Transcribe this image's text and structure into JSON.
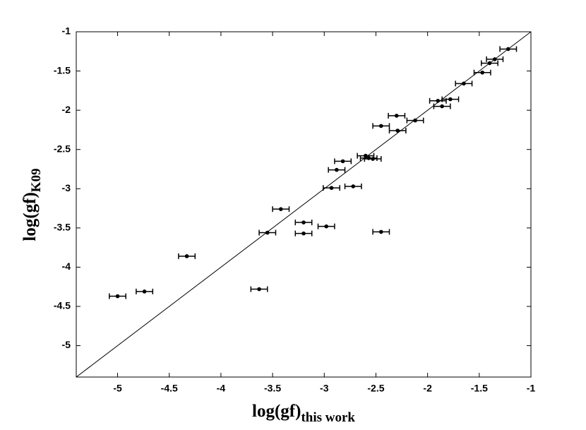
{
  "chart_data": {
    "type": "scatter",
    "x_label": "log(gf)",
    "x_label_subscript": "this work",
    "y_label": "log(gf)",
    "y_label_subscript": "K09",
    "x": [
      -5.0,
      -4.74,
      -4.33,
      -3.63,
      -3.55,
      -3.42,
      -3.2,
      -3.2,
      -2.98,
      -2.93,
      -2.88,
      -2.82,
      -2.72,
      -2.45,
      -2.6,
      -2.57,
      -2.53,
      -2.45,
      -2.3,
      -2.29,
      -2.12,
      -1.9,
      -1.86,
      -1.78,
      -1.65,
      -1.47,
      -1.4,
      -1.35,
      -1.22
    ],
    "values": [
      -4.37,
      -4.31,
      -3.86,
      -4.28,
      -3.56,
      -3.26,
      -3.43,
      -3.57,
      -3.48,
      -2.99,
      -2.76,
      -2.65,
      -2.97,
      -3.55,
      -2.58,
      -2.61,
      -2.62,
      -2.2,
      -2.07,
      -2.26,
      -2.13,
      -1.88,
      -1.95,
      -1.86,
      -1.66,
      -1.52,
      -1.4,
      -1.35,
      -1.22
    ],
    "xerr": [
      0.08,
      0.08,
      0.08,
      0.08,
      0.08,
      0.08,
      0.08,
      0.08,
      0.08,
      0.08,
      0.08,
      0.08,
      0.08,
      0.08,
      0.08,
      0.08,
      0.08,
      0.08,
      0.08,
      0.08,
      0.08,
      0.08,
      0.08,
      0.08,
      0.08,
      0.08,
      0.08,
      0.08,
      0.08
    ],
    "color": "#000000",
    "identity_line": true,
    "xlim": [
      -5.4,
      -1
    ],
    "ylim": [
      -5.4,
      -1
    ],
    "xticks": [
      -5,
      -4.5,
      -4,
      -3.5,
      -3,
      -2.5,
      -2,
      -1.5,
      -1
    ],
    "yticks": [
      -5,
      -4.5,
      -4,
      -3.5,
      -3,
      -2.5,
      -2,
      -1.5,
      -1
    ]
  }
}
